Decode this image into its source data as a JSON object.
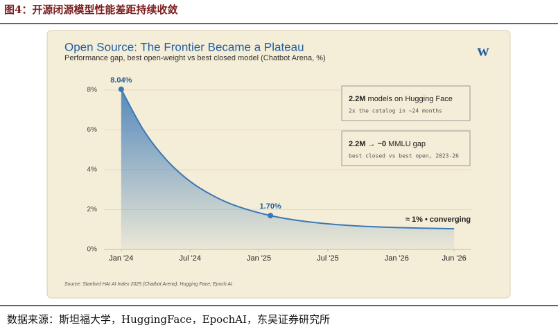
{
  "caption": "图4：开源闭源模型性能差距持续收敛",
  "footer": "数据来源：斯坦福大学，HuggingFace，EpochAI，东吴证券研究所",
  "logo": "w",
  "chart_data": {
    "type": "area-line",
    "title": "Open Source: The Frontier Became a Plateau",
    "subtitle": "Performance gap, best open-weight vs best closed model (Chatbot Arena, %)",
    "source": "Source: Stanford HAI AI Index 2025 (Chatbot Arena); Hugging Face; Epoch AI",
    "series": [
      {
        "color": "#3a78b8",
        "x": [
          0,
          2,
          4,
          6,
          8,
          10,
          13,
          16,
          20,
          24,
          29
        ],
        "values": [
          8.04,
          5.94,
          4.46,
          3.42,
          2.7,
          2.19,
          1.7,
          1.41,
          1.2,
          1.1,
          1.04
        ]
      }
    ],
    "highlights": [
      {
        "x": 0,
        "value": 8.04,
        "label": "8.04%"
      },
      {
        "x": 13,
        "value": 1.7,
        "label": "1.70%"
      }
    ],
    "end_note": "≈ 1% • converging",
    "xlim": [
      -1.5,
      30.5
    ],
    "xticks": [
      {
        "value": 0,
        "label": "Jan '24"
      },
      {
        "value": 6,
        "label": "Jul '24"
      },
      {
        "value": 12,
        "label": "Jan '25"
      },
      {
        "value": 18,
        "label": "Jul '25"
      },
      {
        "value": 24,
        "label": "Jan '26"
      },
      {
        "value": 29,
        "label": "Jun '26"
      }
    ],
    "ylim": [
      0,
      8.5
    ],
    "yticks": [
      {
        "value": 0,
        "label": "0%"
      },
      {
        "value": 2,
        "label": "2%"
      },
      {
        "value": 4,
        "label": "4%"
      },
      {
        "value": 6,
        "label": "6%"
      },
      {
        "value": 8,
        "label": "8%"
      }
    ],
    "grid": true,
    "callouts": [
      {
        "bold": "2.2M",
        "text": "models on Hugging Face",
        "sub": "2x the catalog in ~24 months"
      },
      {
        "bold": "2.2M → ~0",
        "text": "MMLU gap",
        "sub": "best closed vs best open, 2023-26"
      }
    ]
  }
}
